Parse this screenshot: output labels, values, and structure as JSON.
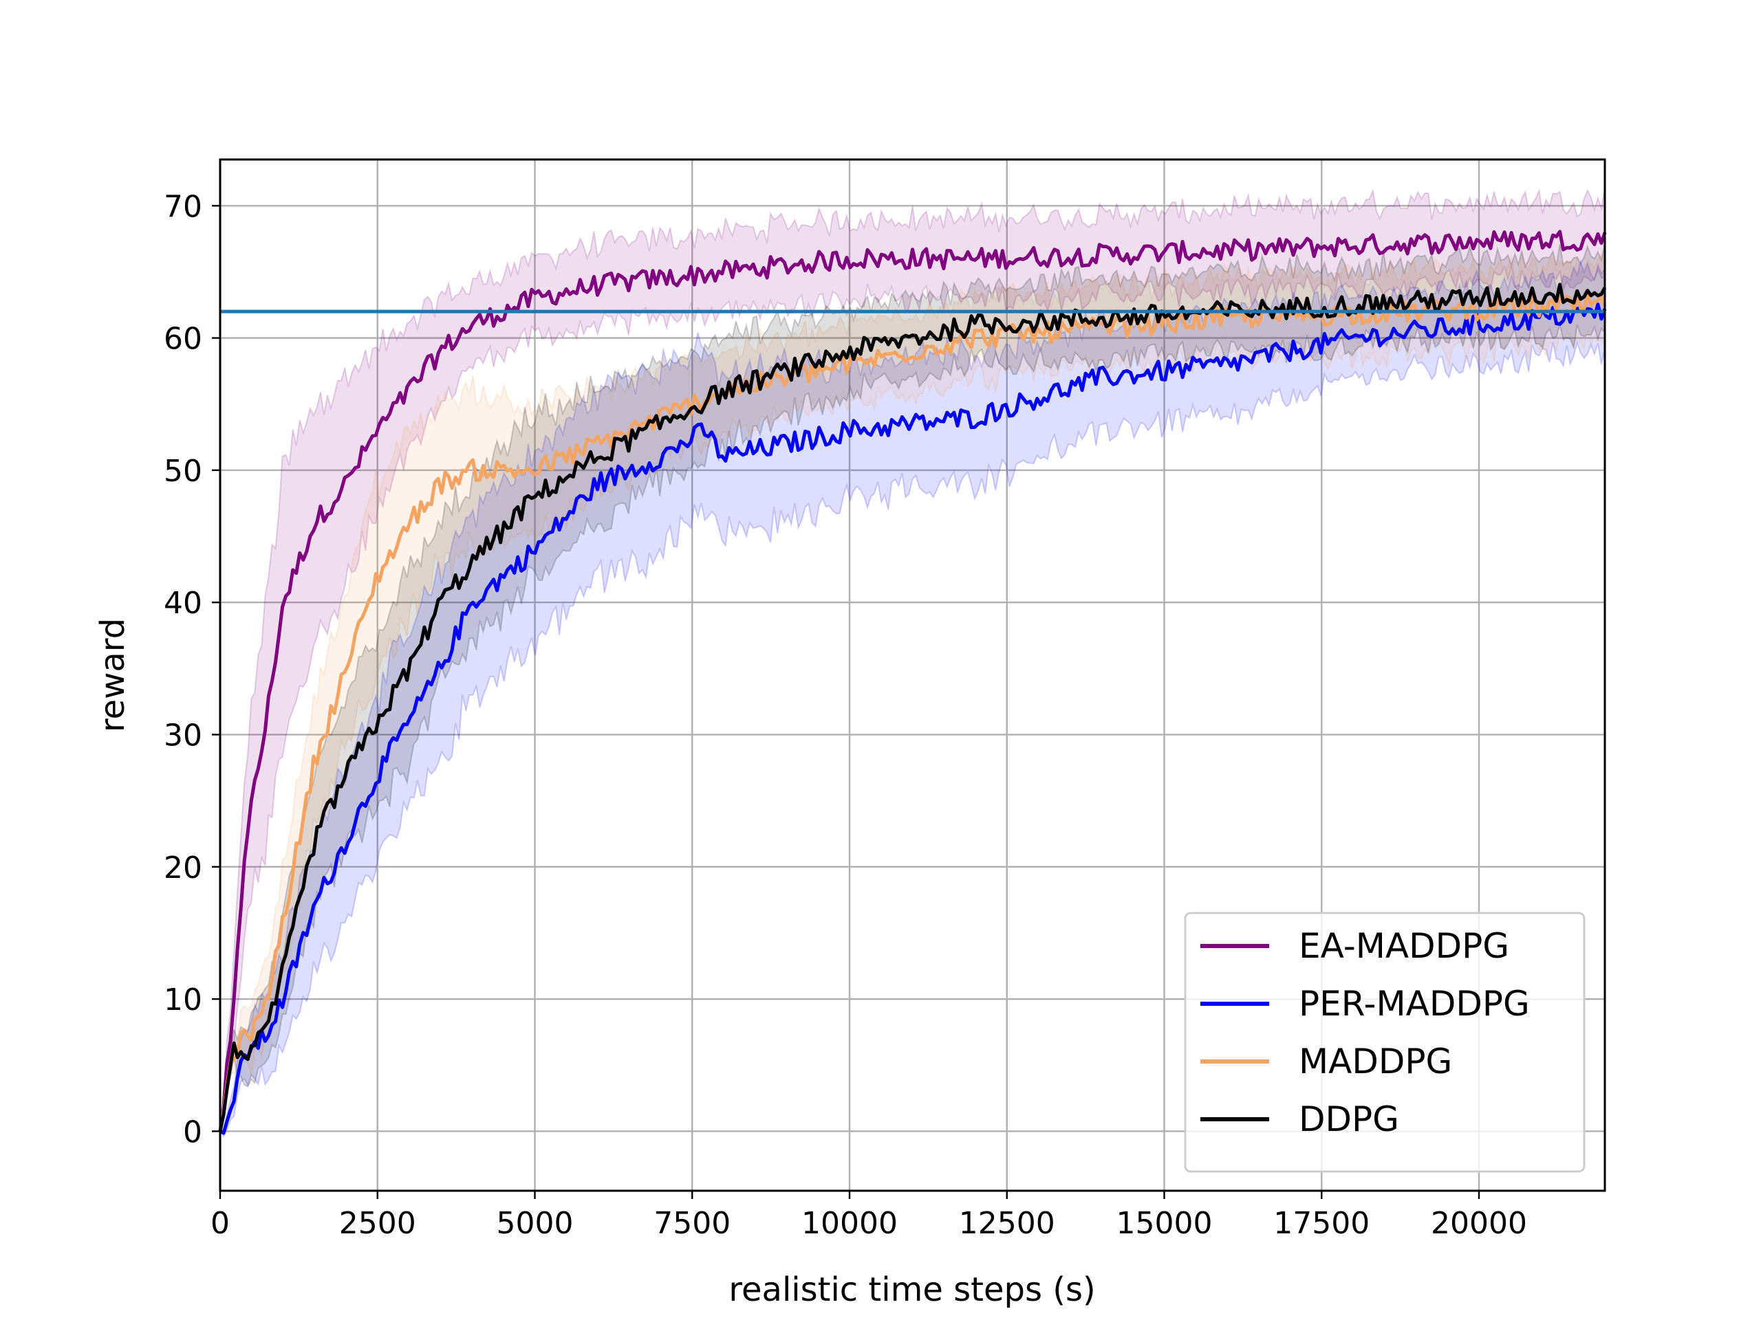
{
  "chart_data": {
    "type": "line",
    "title": "",
    "xlabel": "realistic time steps (s)",
    "ylabel": "reward",
    "xlim": [
      0,
      22000
    ],
    "ylim": [
      -4.5,
      73.5
    ],
    "x_ticks": [
      0,
      2500,
      5000,
      7500,
      10000,
      12500,
      15000,
      17500,
      20000
    ],
    "y_ticks": [
      0,
      10,
      20,
      30,
      40,
      50,
      60,
      70
    ],
    "grid": true,
    "legend_position": "lower-right",
    "reference_line": {
      "y": 62,
      "color": "#1f77b4"
    },
    "series": [
      {
        "name": "EA-MADDPG",
        "color": "#800080",
        "band_halfwidth": [
          0,
          3,
          6,
          9,
          10,
          9,
          8,
          6,
          5,
          4,
          3,
          3,
          3,
          3,
          3,
          3,
          3,
          3,
          3,
          3,
          3,
          3,
          3,
          3
        ],
        "x": [
          0,
          200,
          400,
          700,
          1000,
          1500,
          2000,
          2500,
          3000,
          3500,
          4000,
          4500,
          5000,
          6000,
          7000,
          8000,
          9000,
          10000,
          12000,
          14000,
          16000,
          18000,
          20000,
          22000
        ],
        "y": [
          0,
          8,
          22,
          30,
          40,
          46,
          49,
          53,
          56,
          59,
          61,
          62,
          63,
          64,
          64.5,
          65,
          65.5,
          66,
          66,
          66.3,
          66.6,
          67,
          67.3,
          67.5
        ]
      },
      {
        "name": "PER-MADDPG",
        "color": "#0000ff",
        "band_halfwidth": [
          0,
          1,
          2,
          3,
          4,
          5,
          6,
          6,
          7,
          7,
          7,
          7,
          7,
          7,
          6,
          6,
          6,
          5,
          5,
          4,
          4,
          3,
          3
        ],
        "x": [
          0,
          200,
          400,
          700,
          1000,
          1500,
          2000,
          2500,
          3000,
          3500,
          4000,
          5000,
          6000,
          7000,
          7700,
          8000,
          9000,
          10000,
          12000,
          14000,
          16000,
          18000,
          22000
        ],
        "y": [
          0,
          2,
          6,
          7,
          10,
          17,
          22,
          27,
          31,
          35,
          40,
          44,
          49,
          51,
          53,
          51,
          52,
          53,
          54,
          57,
          58,
          60,
          62
        ]
      },
      {
        "name": "MADDPG",
        "color": "#f4a460",
        "band_halfwidth": [
          0,
          1,
          2,
          3,
          4,
          5,
          6,
          7,
          7,
          6,
          6,
          5,
          4,
          3,
          3,
          3,
          3,
          3
        ],
        "x": [
          0,
          200,
          400,
          700,
          1000,
          1500,
          2000,
          2500,
          3000,
          3500,
          4000,
          5000,
          6000,
          8000,
          10000,
          12000,
          16000,
          22000
        ],
        "y": [
          0,
          6,
          7,
          9,
          16,
          28,
          35,
          42,
          46,
          49,
          50,
          50,
          52,
          56,
          58,
          60,
          61.5,
          62.5
        ]
      },
      {
        "name": "DDPG",
        "color": "#000000",
        "band_halfwidth": [
          0,
          1,
          2,
          3,
          4,
          5,
          6,
          7,
          7,
          6,
          6,
          6,
          5,
          4,
          3,
          3,
          3,
          3
        ],
        "x": [
          0,
          200,
          400,
          700,
          1000,
          1500,
          2000,
          2500,
          3000,
          3500,
          4000,
          5000,
          6000,
          8000,
          10000,
          12000,
          16000,
          22000
        ],
        "y": [
          0,
          6,
          6,
          7,
          12,
          22,
          27,
          31,
          35,
          40,
          43,
          48,
          51,
          56,
          59,
          61,
          62,
          63.5
        ]
      }
    ]
  }
}
